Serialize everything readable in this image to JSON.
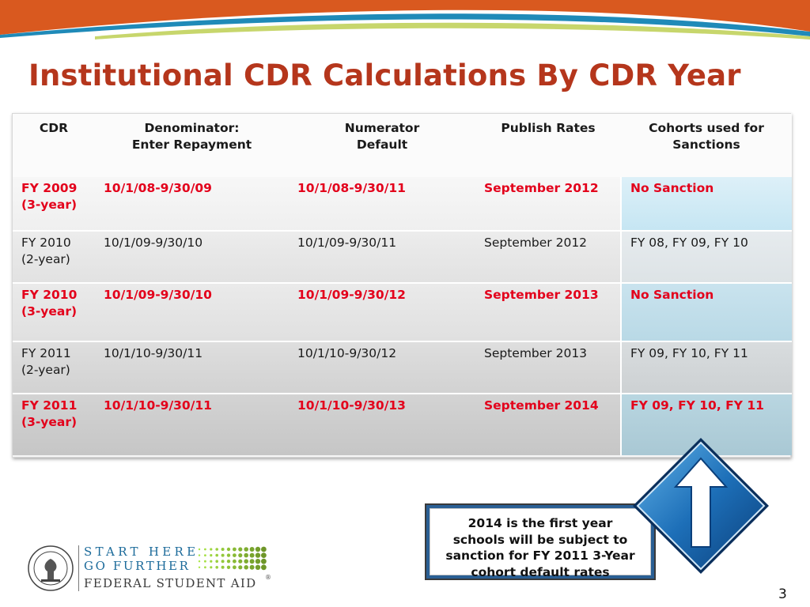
{
  "title": "Institutional CDR Calculations By CDR Year",
  "table": {
    "headers": [
      [
        "CDR"
      ],
      [
        "Denominator:",
        "Enter Repayment"
      ],
      [
        "Numerator",
        "Default"
      ],
      [
        "Publish Rates"
      ],
      [
        "Cohorts used for",
        "Sanctions"
      ]
    ],
    "rows": [
      {
        "cdr": [
          "FY 2009",
          "(3-year)"
        ],
        "denominator": "10/1/08-9/30/09",
        "numerator": "10/1/08-9/30/11",
        "publish": "September 2012",
        "cohorts": "No Sanction"
      },
      {
        "cdr": [
          "FY 2010",
          "(2-year)"
        ],
        "denominator": "10/1/09-9/30/10",
        "numerator": "10/1/09-9/30/11",
        "publish": "September 2012",
        "cohorts": "FY 08, FY 09, FY 10"
      },
      {
        "cdr": [
          "FY 2010",
          "(3-year)"
        ],
        "denominator": "10/1/09-9/30/10",
        "numerator": "10/1/09-9/30/12",
        "publish": "September 2013",
        "cohorts": "No Sanction"
      },
      {
        "cdr": [
          "FY 2011",
          "(2-year)"
        ],
        "denominator": "10/1/10-9/30/11",
        "numerator": "10/1/10-9/30/12",
        "publish": "September 2013",
        "cohorts": "FY 09, FY 10, FY 11"
      },
      {
        "cdr": [
          "FY 2011",
          "(3-year)"
        ],
        "denominator": "10/1/10-9/30/11",
        "numerator": "10/1/10-9/30/13",
        "publish": "September 2014",
        "cohorts": "FY 09, FY 10, FY 11"
      }
    ]
  },
  "callout": {
    "lines": [
      "2014 is the first year",
      "schools will be subject to",
      "sanction for FY 2011 3-Year",
      "cohort default rates"
    ]
  },
  "logo": {
    "line1": "START HERE",
    "line2": "GO FURTHER",
    "line3": "FEDERAL STUDENT AID",
    "registered": "®"
  },
  "page_number": "3",
  "colors": {
    "title": "#b5361c",
    "highlight_text": "#e3001b",
    "banner_orange": "#d9591f",
    "banner_blue": "#1f8ab8",
    "callout_border": "#2a5f94"
  },
  "icons": {
    "arrow": "up-arrow-icon",
    "seal": "department-of-education-seal"
  }
}
